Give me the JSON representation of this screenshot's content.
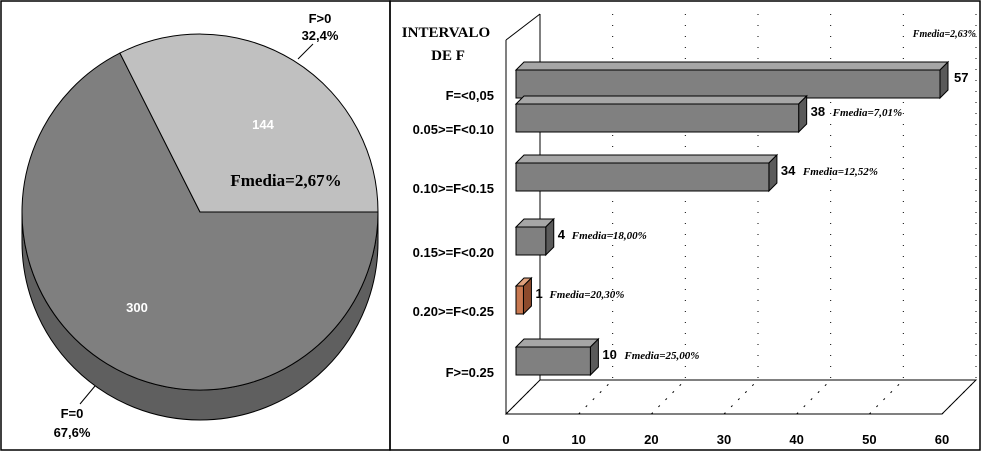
{
  "colors": {
    "pie_large": "#7f7f7f",
    "pie_large_side": "#5f5f5f",
    "pie_small": "#c0c0c0",
    "bar_face": "#808080",
    "bar_top": "#a6a6a6",
    "bar_side": "#5a5a5a",
    "bar_highlight_face": "#c87850",
    "bar_highlight_top": "#e0a07c",
    "bar_highlight_side": "#8c4a2c"
  },
  "chart_data": [
    {
      "type": "pie",
      "slices": [
        {
          "label": "F>0",
          "value": 144,
          "percent_label": "32,4%",
          "value_label": "144"
        },
        {
          "label": "F=0",
          "value": 300,
          "percent_label": "67,6%",
          "value_label": "300"
        }
      ],
      "annotation": "Fmedia=2,67%"
    },
    {
      "type": "bar",
      "orientation": "horizontal",
      "category_header": [
        "INTERVALO",
        "DE F"
      ],
      "categories": [
        "F=<0,05",
        "0.05>=F<0.10",
        "0.10>=F<0.15",
        "0.15>=F<0.20",
        "0.20>=F<0.25",
        "F>=0.25"
      ],
      "values": [
        57,
        38,
        34,
        4,
        1,
        10
      ],
      "value_labels": [
        "57",
        "38",
        "34",
        "4",
        "1",
        "10"
      ],
      "annotations": [
        "Fmedia=2,63%",
        "Fmedia=7,01%",
        "Fmedia=12,52%",
        "Fmedia=18,00%",
        "Fmedia=20,30%",
        "Fmedia=25,00%"
      ],
      "xlim": [
        0,
        60
      ],
      "xticks": [
        "0",
        "10",
        "20",
        "30",
        "40",
        "50",
        "60"
      ],
      "grid": true
    }
  ]
}
